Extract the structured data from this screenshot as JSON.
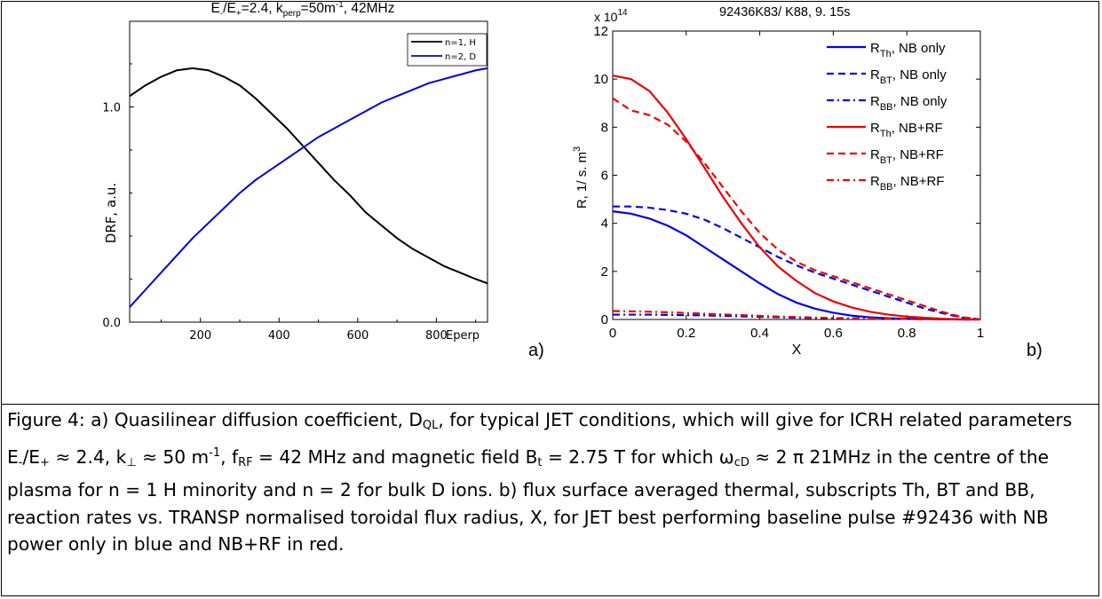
{
  "figure": {
    "panel_a_letter": "a)",
    "panel_b_letter": "b)",
    "caption": {
      "lead": "Figure 4: a) Quasilinear diffusion coefficient, D",
      "lead_sub": "QL",
      "p1": ", for typical JET conditions, which will give for ICRH related parameters E",
      "p1_sub": "-",
      "p2": "/E",
      "p2_sub": "+",
      "p3": " ≈ 2.4, k",
      "p3_sub": "⊥",
      "p4": " ≈ 50 m",
      "p4_sup": "-1",
      "p5": ", f",
      "p5_sub": "RF",
      "p6": " = 42 MHz and magnetic field B",
      "p6_sub": "t",
      "p7": " = 2.75 T for which ω",
      "p7_sub": "cD",
      "p8": " ≈ 2 π 21MHz in the centre of the plasma for n = 1 H minority and n = 2 for bulk D ions. b) flux surface averaged thermal, subscripts Th, BT and BB, reaction rates vs. TRANSP normalised toroidal flux radius, X, for JET best performing baseline pulse #92436 with NB power only in blue and NB+RF in red."
    }
  },
  "chart_data": [
    {
      "type": "line",
      "title_parts": [
        "E",
        "-",
        "/E",
        "+",
        "=2.4, k",
        "perp",
        "=50m",
        "-1",
        ", 42MHz"
      ],
      "xlabel": "Eperp",
      "ylabel": "DRF, a.u.",
      "xlim": [
        20,
        930
      ],
      "ylim": [
        0,
        1.3
      ],
      "xticks": [
        200,
        400,
        600,
        800
      ],
      "yticks": [
        0.0,
        1.0
      ],
      "ytick_labels": [
        "0.0",
        "1.0"
      ],
      "legend_position": "top-right",
      "x": [
        20,
        60,
        100,
        140,
        180,
        220,
        260,
        300,
        340,
        380,
        420,
        460,
        500,
        540,
        580,
        620,
        660,
        700,
        740,
        780,
        820,
        860,
        900,
        930
      ],
      "series": [
        {
          "name": "n=1, H",
          "color": "#000000",
          "values": [
            1.05,
            1.1,
            1.14,
            1.17,
            1.18,
            1.17,
            1.14,
            1.1,
            1.04,
            0.97,
            0.9,
            0.82,
            0.74,
            0.66,
            0.59,
            0.51,
            0.45,
            0.39,
            0.34,
            0.3,
            0.26,
            0.23,
            0.2,
            0.18
          ]
        },
        {
          "name": "n=2, D",
          "color": "#0000dd",
          "values": [
            0.07,
            0.15,
            0.23,
            0.31,
            0.39,
            0.46,
            0.53,
            0.6,
            0.66,
            0.71,
            0.76,
            0.81,
            0.86,
            0.9,
            0.94,
            0.98,
            1.02,
            1.05,
            1.08,
            1.11,
            1.13,
            1.15,
            1.17,
            1.18
          ]
        }
      ]
    },
    {
      "type": "line",
      "title": "92436K83/ K88,   9. 15s",
      "multiplier_label": "x 10",
      "multiplier_exp": "14",
      "xlabel": "X",
      "ylabel": "R,   1/ s. m",
      "ylabel_sup": "3",
      "xlim": [
        0,
        1
      ],
      "ylim": [
        0,
        12
      ],
      "xticks": [
        0,
        0.2,
        0.4,
        0.6,
        0.8,
        1
      ],
      "xtick_labels": [
        "0",
        "0.2",
        "0.4",
        "0.6",
        "0.8",
        "1"
      ],
      "yticks": [
        0,
        2,
        4,
        6,
        8,
        10,
        12
      ],
      "ytick_labels": [
        "0",
        "2",
        "4",
        "6",
        "8",
        "10",
        "12"
      ],
      "legend_position": "top-right",
      "x": [
        0,
        0.05,
        0.1,
        0.15,
        0.2,
        0.25,
        0.3,
        0.35,
        0.4,
        0.45,
        0.5,
        0.55,
        0.6,
        0.65,
        0.7,
        0.75,
        0.8,
        0.85,
        0.9,
        0.95,
        1.0
      ],
      "series": [
        {
          "name": "R_Th, NB only",
          "name_main": "R",
          "name_sub": "Th",
          "name_rest": ", NB only",
          "color": "#0000ee",
          "dash": "solid",
          "values": [
            4.5,
            4.4,
            4.2,
            3.9,
            3.5,
            3.0,
            2.5,
            2.0,
            1.5,
            1.05,
            0.7,
            0.45,
            0.28,
            0.16,
            0.09,
            0.05,
            0.03,
            0.02,
            0.01,
            0.0,
            0.0
          ]
        },
        {
          "name": "R_BT, NB only",
          "name_main": "R",
          "name_sub": "BT",
          "name_rest": ", NB only",
          "color": "#0000ee",
          "dash": "dashed",
          "values": [
            4.7,
            4.7,
            4.65,
            4.55,
            4.4,
            4.15,
            3.8,
            3.4,
            3.0,
            2.6,
            2.25,
            1.95,
            1.7,
            1.45,
            1.2,
            0.95,
            0.7,
            0.45,
            0.25,
            0.08,
            0.0
          ]
        },
        {
          "name": "R_BB, NB only",
          "name_main": "R",
          "name_sub": "BB",
          "name_rest": ", NB only",
          "color": "#0000ee",
          "dash": "dashdot",
          "values": [
            0.2,
            0.2,
            0.2,
            0.19,
            0.18,
            0.17,
            0.15,
            0.13,
            0.11,
            0.09,
            0.07,
            0.06,
            0.05,
            0.04,
            0.03,
            0.02,
            0.02,
            0.01,
            0.01,
            0.0,
            0.0
          ]
        },
        {
          "name": "R_Th, NB+RF",
          "name_main": "R",
          "name_sub": "Th",
          "name_rest": ", NB+RF",
          "color": "#ee0000",
          "dash": "solid",
          "values": [
            10.15,
            10.0,
            9.5,
            8.6,
            7.5,
            6.3,
            5.1,
            4.0,
            3.0,
            2.2,
            1.6,
            1.1,
            0.75,
            0.5,
            0.32,
            0.2,
            0.12,
            0.07,
            0.03,
            0.01,
            0.0
          ]
        },
        {
          "name": "R_BT, NB+RF",
          "name_main": "R",
          "name_sub": "BT",
          "name_rest": ", NB+RF",
          "color": "#ee0000",
          "dash": "dashed",
          "values": [
            9.2,
            8.7,
            8.5,
            8.1,
            7.4,
            6.5,
            5.5,
            4.5,
            3.6,
            2.9,
            2.4,
            2.05,
            1.8,
            1.55,
            1.3,
            1.05,
            0.8,
            0.55,
            0.3,
            0.1,
            0.0
          ]
        },
        {
          "name": "R_BB, NB+RF",
          "name_main": "R",
          "name_sub": "BB",
          "name_rest": ", NB+RF",
          "color": "#ee0000",
          "dash": "dashdot",
          "values": [
            0.35,
            0.34,
            0.32,
            0.3,
            0.27,
            0.24,
            0.21,
            0.18,
            0.15,
            0.12,
            0.1,
            0.08,
            0.06,
            0.05,
            0.04,
            0.03,
            0.02,
            0.01,
            0.01,
            0.0,
            0.0
          ]
        }
      ]
    }
  ]
}
